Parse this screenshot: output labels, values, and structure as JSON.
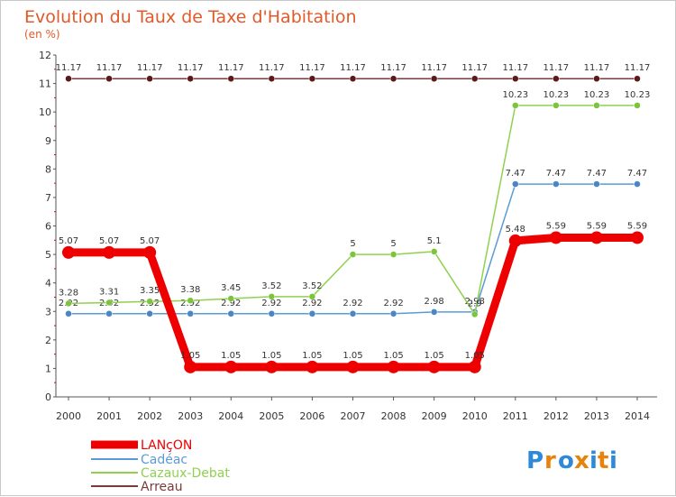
{
  "chart_data": {
    "type": "line",
    "title": "Evolution du Taux de Taxe d'Habitation",
    "subtitle": "(en %)",
    "x": [
      "2000",
      "2001",
      "2002",
      "2003",
      "2004",
      "2005",
      "2006",
      "2007",
      "2008",
      "2009",
      "2010",
      "2011",
      "2012",
      "2013",
      "2014"
    ],
    "ylim": [
      0,
      12
    ],
    "yticks": [
      "0",
      "1",
      "2",
      "3",
      "4",
      "5",
      "6",
      "7",
      "8",
      "9",
      "10",
      "11",
      "12"
    ],
    "grid": false,
    "legend_position": "bottom-left",
    "series": [
      {
        "name": "LANçON",
        "color": "#ee0000",
        "values": [
          5.07,
          5.07,
          5.07,
          1.05,
          1.05,
          1.05,
          1.05,
          1.05,
          1.05,
          1.05,
          1.05,
          5.48,
          5.59,
          5.59,
          5.59
        ],
        "labels": [
          "5.07",
          "5.07",
          "5.07",
          "1.05",
          "1.05",
          "1.05",
          "1.05",
          "1.05",
          "1.05",
          "1.05",
          "1.05",
          "5.48",
          "5.59",
          "5.59",
          "5.59"
        ]
      },
      {
        "name": "Cadéac",
        "color": "#5b9bd5",
        "values": [
          2.92,
          2.92,
          2.92,
          2.92,
          2.92,
          2.92,
          2.92,
          2.92,
          2.92,
          2.98,
          2.98,
          7.47,
          7.47,
          7.47,
          7.47
        ],
        "labels": [
          "2.92",
          "2.92",
          "2.92",
          "2.92",
          "2.92",
          "2.92",
          "2.92",
          "2.92",
          "2.92",
          "2.98",
          "2.98",
          "7.47",
          "7.47",
          "7.47",
          "7.47"
        ]
      },
      {
        "name": "Cazaux-Debat",
        "color": "#8fd14f",
        "values": [
          3.28,
          3.31,
          3.35,
          3.38,
          3.45,
          3.52,
          3.52,
          5,
          5,
          5.1,
          2.9,
          10.23,
          10.23,
          10.23,
          10.23
        ],
        "labels": [
          "3.28",
          "3.31",
          "3.35",
          "3.38",
          "3.45",
          "3.52",
          "3.52",
          "5",
          "5",
          "5.1",
          "2.9",
          "10.23",
          "10.23",
          "10.23",
          "10.23"
        ]
      },
      {
        "name": "Arreau",
        "color": "#7a3a3a",
        "values": [
          11.17,
          11.17,
          11.17,
          11.17,
          11.17,
          11.17,
          11.17,
          11.17,
          11.17,
          11.17,
          11.17,
          11.17,
          11.17,
          11.17,
          11.17
        ],
        "labels": [
          "11.17",
          "11.17",
          "11.17",
          "11.17",
          "11.17",
          "11.17",
          "11.17",
          "11.17",
          "11.17",
          "11.17",
          "11.17",
          "11.17",
          "11.17",
          "11.17",
          "11.17"
        ]
      }
    ]
  },
  "logo": {
    "text": "Proxiti",
    "colors": [
      "#2e8ad8",
      "#e8820a",
      "#2e8ad8",
      "#e8820a",
      "#2e8ad8",
      "#e8820a",
      "#2e8ad8"
    ]
  }
}
